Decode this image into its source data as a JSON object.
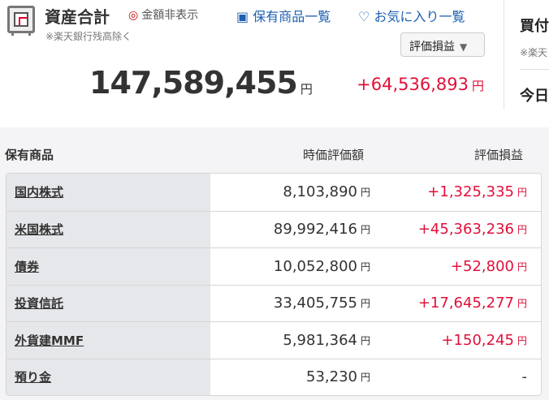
{
  "header": {
    "title": "資産合計",
    "hide_amount": "金額非表示",
    "holdings_link": "保有商品一覧",
    "favorites_link": "お気に入り一覧",
    "note": "※楽天銀行残高除く",
    "dropdown": "評価損益",
    "total": "147,589,455",
    "yen": "円",
    "profit": "+64,536,893"
  },
  "side": {
    "title": "買付",
    "note": "※楽天",
    "today": "今日"
  },
  "table": {
    "title": "保有商品",
    "col_value": "時価評価額",
    "col_gain": "評価損益",
    "rows": [
      {
        "name": "国内株式",
        "value": "8,103,890",
        "gain": "+1,325,335"
      },
      {
        "name": "米国株式",
        "value": "89,992,416",
        "gain": "+45,363,236"
      },
      {
        "name": "債券",
        "value": "10,052,800",
        "gain": "+52,800"
      },
      {
        "name": "投資信託",
        "value": "33,405,755",
        "gain": "+17,645,277"
      },
      {
        "name": "外貨建MMF",
        "value": "5,981,364",
        "gain": "+150,245"
      },
      {
        "name": "預り金",
        "value": "53,230",
        "gain": "-"
      }
    ]
  },
  "colors": {
    "accent": "#e0103a",
    "link": "#1d5fb0"
  }
}
